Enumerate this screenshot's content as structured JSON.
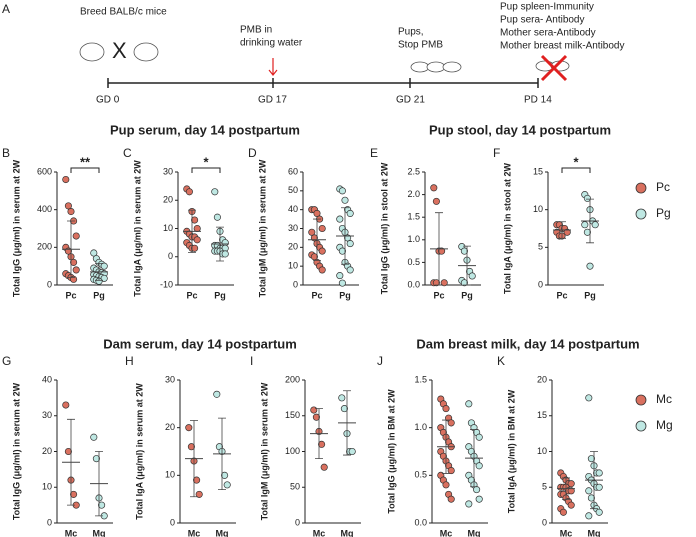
{
  "timeline": {
    "panel": "A",
    "events": [
      {
        "label": "GD 0",
        "notes": [
          "Breed BALB/c mice"
        ]
      },
      {
        "label": "GD 17",
        "notes": [
          "PMB in",
          "drinking water"
        ]
      },
      {
        "label": "GD 21",
        "notes": [
          "Pups,",
          "Stop PMB"
        ]
      },
      {
        "label": "PD 14",
        "notes": [
          "Pup spleen-Immunity",
          "Pup sera- Antibody",
          "Mother sera-Antibody",
          "Mother breast milk-Antibody"
        ]
      }
    ]
  },
  "sections": [
    "Pup serum, day 14 postpartum",
    "Pup stool, day 14 postpartum",
    "Dam serum, day 14 postpartum",
    "Dam breast milk, day 14 postpartum"
  ],
  "chart_data": [
    {
      "type": "dot",
      "panel": "B",
      "ylabel": "Total IgG (μg/ml) in serum at 2W",
      "ylim": [
        0,
        600
      ],
      "yticks": [
        0,
        200,
        400,
        600
      ],
      "annotation": "**",
      "series": [
        {
          "name": "Pc",
          "color": "#d9705f",
          "values": [
            560,
            420,
            390,
            340,
            260,
            200,
            180,
            150,
            120,
            80,
            60,
            50,
            40,
            30
          ],
          "mean": 190,
          "sd": 150
        },
        {
          "name": "Pg",
          "color": "#bfe8e3",
          "values": [
            170,
            140,
            120,
            110,
            100,
            90,
            80,
            70,
            65,
            60,
            55,
            50,
            45,
            40,
            35,
            30,
            25,
            20
          ],
          "mean": 70,
          "sd": 45
        }
      ]
    },
    {
      "type": "dot",
      "panel": "C",
      "ylabel": "Total IgA (μg/ml) in serum at 2W",
      "ylim": [
        -10,
        30
      ],
      "yticks": [
        -10,
        0,
        10,
        20,
        30
      ],
      "annotation": "*",
      "series": [
        {
          "name": "Pc",
          "color": "#d9705f",
          "values": [
            24,
            23,
            16,
            13,
            10,
            9,
            8,
            7,
            7,
            6,
            5,
            4,
            3,
            3
          ],
          "mean": 9,
          "sd": 7.5
        },
        {
          "name": "Pg",
          "color": "#bfe8e3",
          "values": [
            23,
            14,
            9,
            6,
            5,
            4,
            4,
            3,
            3,
            3,
            2,
            2,
            2,
            1,
            1
          ],
          "mean": 4.5,
          "sd": 6
        }
      ]
    },
    {
      "type": "dot",
      "panel": "D",
      "ylabel": "Total IgM (μg/ml) in serum at 2W",
      "ylim": [
        0,
        60
      ],
      "yticks": [
        0,
        10,
        20,
        30,
        40,
        50,
        60
      ],
      "series": [
        {
          "name": "Pc",
          "color": "#d9705f",
          "values": [
            40,
            40,
            38,
            35,
            30,
            28,
            25,
            22,
            20,
            18,
            16,
            15,
            12,
            10,
            8
          ],
          "mean": 24,
          "sd": 11
        },
        {
          "name": "Pg",
          "color": "#bfe8e3",
          "values": [
            51,
            50,
            45,
            40,
            38,
            35,
            30,
            28,
            25,
            22,
            20,
            18,
            12,
            10,
            8,
            5,
            1
          ],
          "mean": 26,
          "sd": 15
        }
      ]
    },
    {
      "type": "dot",
      "panel": "E",
      "ylabel": "Total IgG (μg/ml) in stool at 2W",
      "ylim": [
        0,
        2.5
      ],
      "yticks": [
        {
          "value": 0,
          "label": "0.0"
        },
        0.5,
        {
          "value": 1,
          "label": "1.0"
        },
        1.5,
        {
          "value": 2,
          "label": "2.0"
        },
        2.5
      ],
      "series": [
        {
          "name": "Pc",
          "color": "#d9705f",
          "values": [
            2.15,
            1.85,
            0.75,
            0.75,
            0.05,
            0.05,
            0.05
          ],
          "mean": 0.8,
          "sd": 0.8
        },
        {
          "name": "Pg",
          "color": "#bfe8e3",
          "values": [
            0.85,
            0.75,
            0.55,
            0.3,
            0.2,
            0.1,
            0.05
          ],
          "mean": 0.43,
          "sd": 0.43
        }
      ]
    },
    {
      "type": "dot",
      "panel": "F",
      "ylabel": "Total IgA (μg/ml) in stool at 2W",
      "ylim": [
        0,
        15
      ],
      "yticks": [
        0,
        5,
        10,
        15
      ],
      "annotation": "*",
      "series": [
        {
          "name": "Pc",
          "color": "#d9705f",
          "values": [
            8,
            8,
            7.5,
            7.5,
            7,
            7,
            6.5,
            6.5
          ],
          "mean": 7.3,
          "sd": 1.1
        },
        {
          "name": "Pg",
          "color": "#bfe8e3",
          "values": [
            12,
            11.5,
            10,
            8.5,
            8,
            8,
            7,
            2.5
          ],
          "mean": 8.5,
          "sd": 2.9
        }
      ]
    },
    {
      "type": "dot",
      "panel": "G",
      "ylabel": "Total IgG (μg/ml) in serum at 2W",
      "ylim": [
        0,
        40
      ],
      "yticks": [
        0,
        10,
        20,
        30,
        40
      ],
      "series": [
        {
          "name": "Mc",
          "color": "#d9705f",
          "values": [
            33,
            20,
            12,
            8,
            5
          ],
          "mean": 17,
          "sd": 12
        },
        {
          "name": "Mg",
          "color": "#bfe8e3",
          "values": [
            24,
            18,
            7,
            5,
            2
          ],
          "mean": 11,
          "sd": 9
        }
      ]
    },
    {
      "type": "dot",
      "panel": "H",
      "ylabel": "Total IgA (μg/ml) in serum at 2W",
      "ylim": [
        0,
        30
      ],
      "yticks": [
        0,
        10,
        20,
        30
      ],
      "series": [
        {
          "name": "Mc",
          "color": "#d9705f",
          "values": [
            20,
            16,
            13,
            9,
            6
          ],
          "mean": 13.5,
          "sd": 8
        },
        {
          "name": "Mg",
          "color": "#bfe8e3",
          "values": [
            27,
            16,
            15,
            10,
            8
          ],
          "mean": 14.5,
          "sd": 7.5
        }
      ]
    },
    {
      "type": "dot",
      "panel": "I",
      "ylabel": "Total IgM (μg/ml) in serum at 2W",
      "ylim": [
        0,
        200
      ],
      "yticks": [
        0,
        50,
        100,
        150,
        200
      ],
      "series": [
        {
          "name": "Mc",
          "color": "#d9705f",
          "values": [
            158,
            148,
            128,
            110,
            78
          ],
          "mean": 125,
          "sd": 35
        },
        {
          "name": "Mg",
          "color": "#bfe8e3",
          "values": [
            175,
            160,
            125,
            100,
            100
          ],
          "mean": 140,
          "sd": 45
        }
      ]
    },
    {
      "type": "dot",
      "panel": "J",
      "ylabel": "Total IgG (μg/ml) in BM at 2W",
      "ylim": [
        0,
        1.5
      ],
      "yticks": [
        {
          "value": 0,
          "label": "0.0"
        },
        0.5,
        {
          "value": 1,
          "label": "1.0"
        },
        1.5
      ],
      "series": [
        {
          "name": "Mc",
          "color": "#d9705f",
          "values": [
            1.3,
            1.25,
            1.2,
            1.1,
            1.05,
            1,
            0.95,
            0.9,
            0.85,
            0.8,
            0.75,
            0.7,
            0.65,
            0.6,
            0.55,
            0.5,
            0.45,
            0.4,
            0.3,
            0.25
          ],
          "mean": 0.8,
          "sd": 0.28
        },
        {
          "name": "Mg",
          "color": "#bfe8e3",
          "values": [
            1.25,
            1.05,
            1,
            0.95,
            0.9,
            0.8,
            0.75,
            0.7,
            0.65,
            0.6,
            0.5,
            0.45,
            0.4,
            0.35,
            0.25,
            0.2
          ],
          "mean": 0.68,
          "sd": 0.3
        }
      ]
    },
    {
      "type": "dot",
      "panel": "K",
      "ylabel": "Total IgA (μg/ml) in BM at 2W",
      "ylim": [
        0,
        20
      ],
      "yticks": [
        0,
        5,
        10,
        15,
        20
      ],
      "series": [
        {
          "name": "Mc",
          "color": "#d9705f",
          "values": [
            7,
            6.5,
            6,
            5.5,
            5.5,
            5,
            5,
            5,
            4.5,
            4.5,
            4,
            4,
            3.5,
            3,
            2.5,
            2,
            1.5
          ],
          "mean": 4.8,
          "sd": 1.5
        },
        {
          "name": "Mg",
          "color": "#bfe8e3",
          "values": [
            17.5,
            9,
            8,
            7,
            7,
            6.5,
            6,
            5.5,
            5,
            5,
            4.5,
            3.5,
            2.5,
            2,
            1.5,
            1
          ],
          "mean": 6,
          "sd": 4
        }
      ]
    }
  ]
}
